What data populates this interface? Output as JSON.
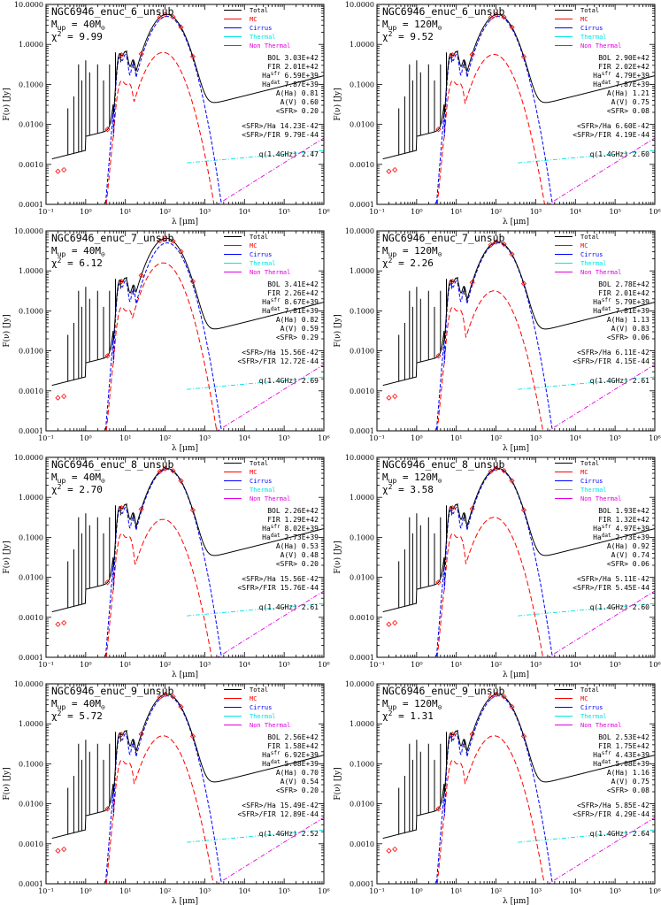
{
  "legend": [
    {
      "label": "Total",
      "color": "#000000"
    },
    {
      "label": "MC",
      "color": "#ff0000"
    },
    {
      "label": "Cirrus",
      "color": "#0000ff"
    },
    {
      "label": "Thermal",
      "color": "#00e5e5"
    },
    {
      "label": "Non Thermal",
      "color": "#e000e0"
    }
  ],
  "chart_data": [
    {
      "type": "line",
      "title": "NGC6946_enuc_6_unsub",
      "mup": "40",
      "chi2": "9.99",
      "xlabel": "λ [μm]",
      "ylabel": "F(ν) [Jy]",
      "xscale": "log",
      "yscale": "log",
      "xlim": [
        0.1,
        1000000
      ],
      "ylim": [
        0.0001,
        10
      ],
      "x_ticks": [
        "10⁻¹",
        "10⁰",
        "10¹",
        "10²",
        "10³",
        "10⁴",
        "10⁵",
        "10⁶"
      ],
      "y_ticks": [
        "10.0000",
        "1.0000",
        "0.1000",
        "0.0100",
        "0.0010",
        "0.0001"
      ],
      "series": [
        {
          "name": "Total"
        },
        {
          "name": "MC"
        },
        {
          "name": "Cirrus"
        },
        {
          "name": "Thermal"
        },
        {
          "name": "Non Thermal"
        }
      ],
      "stats": {
        "BOL": "3.03E+42",
        "FIR": "2.01E+42",
        "Ha_sfr": "6.59E+39",
        "Ha_dat": "7.87E+39",
        "A_Ha": "0.81",
        "A_V": "0.60",
        "SFR": "0.20",
        "SFR_Ha": "14.23E-42",
        "SFR_FIR": "9.79E-44",
        "q14": "2.47"
      }
    },
    {
      "type": "line",
      "title": "NGC6946_enuc_6_unsub",
      "mup": "120",
      "chi2": "9.52",
      "xlabel": "λ [μm]",
      "ylabel": "F(ν) [Jy]",
      "xscale": "log",
      "yscale": "log",
      "xlim": [
        0.1,
        1000000
      ],
      "ylim": [
        0.0001,
        10
      ],
      "x_ticks": [
        "10⁻¹",
        "10⁰",
        "10¹",
        "10²",
        "10³",
        "10⁴",
        "10⁵",
        "10⁶"
      ],
      "y_ticks": [
        "10.0000",
        "1.0000",
        "0.1000",
        "0.0100",
        "0.0010",
        "0.0001"
      ],
      "series": [
        {
          "name": "Total"
        },
        {
          "name": "MC"
        },
        {
          "name": "Cirrus"
        },
        {
          "name": "Thermal"
        },
        {
          "name": "Non Thermal"
        }
      ],
      "stats": {
        "BOL": "2.90E+42",
        "FIR": "2.02E+42",
        "Ha_sfr": "4.79E+39",
        "Ha_dat": "7.87E+39",
        "A_Ha": "1.21",
        "A_V": "0.75",
        "SFR": "0.08",
        "SFR_Ha": "6.60E-42",
        "SFR_FIR": "4.19E-44",
        "q14": "2.60"
      }
    },
    {
      "type": "line",
      "title": "NGC6946_enuc_7_unsub",
      "mup": "40",
      "chi2": "6.12",
      "xlabel": "λ [μm]",
      "ylabel": "F(ν) [Jy]",
      "xscale": "log",
      "yscale": "log",
      "xlim": [
        0.1,
        1000000
      ],
      "ylim": [
        0.0001,
        10
      ],
      "x_ticks": [
        "10⁻¹",
        "10⁰",
        "10¹",
        "10²",
        "10³",
        "10⁴",
        "10⁵",
        "10⁶"
      ],
      "y_ticks": [
        "10.0000",
        "1.0000",
        "0.1000",
        "0.0100",
        "0.0010",
        "0.0001"
      ],
      "series": [
        {
          "name": "Total"
        },
        {
          "name": "MC"
        },
        {
          "name": "Cirrus"
        },
        {
          "name": "Thermal"
        },
        {
          "name": "Non Thermal"
        }
      ],
      "stats": {
        "BOL": "3.41E+42",
        "FIR": "2.26E+42",
        "Ha_sfr": "8.67E+39",
        "Ha_dat": "7.81E+39",
        "A_Ha": "0.82",
        "A_V": "0.59",
        "SFR": "0.29",
        "SFR_Ha": "15.56E-42",
        "SFR_FIR": "12.72E-44",
        "q14": "2.69"
      }
    },
    {
      "type": "line",
      "title": "NGC6946_enuc_7_unsub",
      "mup": "120",
      "chi2": "2.26",
      "xlabel": "λ [μm]",
      "ylabel": "F(ν) [Jy]",
      "xscale": "log",
      "yscale": "log",
      "xlim": [
        0.1,
        1000000
      ],
      "ylim": [
        0.0001,
        10
      ],
      "x_ticks": [
        "10⁻¹",
        "10⁰",
        "10¹",
        "10²",
        "10³",
        "10⁴",
        "10⁵",
        "10⁶"
      ],
      "y_ticks": [
        "10.0000",
        "1.0000",
        "0.1000",
        "0.0100",
        "0.0010",
        "0.0001"
      ],
      "series": [
        {
          "name": "Total"
        },
        {
          "name": "MC"
        },
        {
          "name": "Cirrus"
        },
        {
          "name": "Thermal"
        },
        {
          "name": "Non Thermal"
        }
      ],
      "stats": {
        "BOL": "2.78E+42",
        "FIR": "2.01E+42",
        "Ha_sfr": "5.79E+39",
        "Ha_dat": "7.81E+39",
        "A_Ha": "1.13",
        "A_V": "0.83",
        "SFR": "0.06",
        "SFR_Ha": "6.11E-42",
        "SFR_FIR": "4.15E-44",
        "q14": "2.61"
      }
    },
    {
      "type": "line",
      "title": "NGC6946_enuc_8_unsub",
      "mup": "40",
      "chi2": "2.70",
      "xlabel": "λ [μm]",
      "ylabel": "F(ν) [Jy]",
      "xscale": "log",
      "yscale": "log",
      "xlim": [
        0.1,
        1000000
      ],
      "ylim": [
        0.0001,
        10
      ],
      "x_ticks": [
        "10⁻¹",
        "10⁰",
        "10¹",
        "10²",
        "10³",
        "10⁴",
        "10⁵",
        "10⁶"
      ],
      "y_ticks": [
        "10.0000",
        "1.0000",
        "0.1000",
        "0.0100",
        "0.0010",
        "0.0001"
      ],
      "series": [
        {
          "name": "Total"
        },
        {
          "name": "MC"
        },
        {
          "name": "Cirrus"
        },
        {
          "name": "Thermal"
        },
        {
          "name": "Non Thermal"
        }
      ],
      "stats": {
        "BOL": "2.26E+42",
        "FIR": "1.29E+42",
        "Ha_sfr": "8.02E+39",
        "Ha_dat": "2.73E+39",
        "A_Ha": "0.53",
        "A_V": "0.48",
        "SFR": "0.20",
        "SFR_Ha": "15.56E-42",
        "SFR_FIR": "15.76E-44",
        "q14": "2.61"
      }
    },
    {
      "type": "line",
      "title": "NGC6946_enuc_8_unsub",
      "mup": "120",
      "chi2": "3.58",
      "xlabel": "λ [μm]",
      "ylabel": "F(ν) [Jy]",
      "xscale": "log",
      "yscale": "log",
      "xlim": [
        0.1,
        1000000
      ],
      "ylim": [
        0.0001,
        10
      ],
      "x_ticks": [
        "10⁻¹",
        "10⁰",
        "10¹",
        "10²",
        "10³",
        "10⁴",
        "10⁵",
        "10⁶"
      ],
      "y_ticks": [
        "10.0000",
        "1.0000",
        "0.1000",
        "0.0100",
        "0.0010",
        "0.0001"
      ],
      "series": [
        {
          "name": "Total"
        },
        {
          "name": "MC"
        },
        {
          "name": "Cirrus"
        },
        {
          "name": "Thermal"
        },
        {
          "name": "Non Thermal"
        }
      ],
      "stats": {
        "BOL": "1.93E+42",
        "FIR": "1.32E+42",
        "Ha_sfr": "4.97E+39",
        "Ha_dat": "2.73E+39",
        "A_Ha": "0.92",
        "A_V": "0.74",
        "SFR": "0.06",
        "SFR_Ha": "5.11E-42",
        "SFR_FIR": "5.45E-44",
        "q14": "2.60"
      }
    },
    {
      "type": "line",
      "title": "NGC6946_enuc_9_unsub",
      "mup": "40",
      "chi2": "5.72",
      "xlabel": "λ [μm]",
      "ylabel": "F(ν) [Jy]",
      "xscale": "log",
      "yscale": "log",
      "xlim": [
        0.1,
        1000000
      ],
      "ylim": [
        0.0001,
        10
      ],
      "x_ticks": [
        "10⁻¹",
        "10⁰",
        "10¹",
        "10²",
        "10³",
        "10⁴",
        "10⁵",
        "10⁶"
      ],
      "y_ticks": [
        "10.0000",
        "1.0000",
        "0.1000",
        "0.0100",
        "0.0010",
        "0.0001"
      ],
      "series": [
        {
          "name": "Total"
        },
        {
          "name": "MC"
        },
        {
          "name": "Cirrus"
        },
        {
          "name": "Thermal"
        },
        {
          "name": "Non Thermal"
        }
      ],
      "stats": {
        "BOL": "2.56E+42",
        "FIR": "1.58E+42",
        "Ha_sfr": "6.92E+39",
        "Ha_dat": "5.08E+39",
        "A_Ha": "0.70",
        "A_V": "0.54",
        "SFR": "0.20",
        "SFR_Ha": "15.49E-42",
        "SFR_FIR": "12.89E-44",
        "q14": "2.52"
      }
    },
    {
      "type": "line",
      "title": "NGC6946_enuc_9_unsub",
      "mup": "120",
      "chi2": "1.31",
      "xlabel": "λ [μm]",
      "ylabel": "F(ν) [Jy]",
      "xscale": "log",
      "yscale": "log",
      "xlim": [
        0.1,
        1000000
      ],
      "ylim": [
        0.0001,
        10
      ],
      "x_ticks": [
        "10⁻¹",
        "10⁰",
        "10¹",
        "10²",
        "10³",
        "10⁴",
        "10⁵",
        "10⁶"
      ],
      "y_ticks": [
        "10.0000",
        "1.0000",
        "0.1000",
        "0.0100",
        "0.0010",
        "0.0001"
      ],
      "series": [
        {
          "name": "Total"
        },
        {
          "name": "MC"
        },
        {
          "name": "Cirrus"
        },
        {
          "name": "Thermal"
        },
        {
          "name": "Non Thermal"
        }
      ],
      "stats": {
        "BOL": "2.53E+42",
        "FIR": "1.75E+42",
        "Ha_sfr": "4.43E+39",
        "Ha_dat": "5.08E+39",
        "A_Ha": "1.16",
        "A_V": "0.75",
        "SFR": "0.08",
        "SFR_Ha": "5.85E-42",
        "SFR_FIR": "4.29E-44",
        "q14": "2.64"
      }
    }
  ]
}
